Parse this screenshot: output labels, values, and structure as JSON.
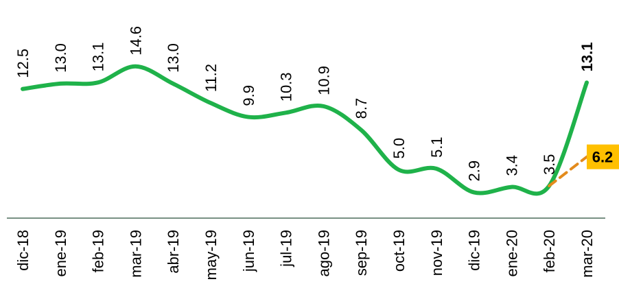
{
  "chart_data": {
    "type": "line",
    "categories": [
      "dic-18",
      "ene-19",
      "feb-19",
      "mar-19",
      "abr-19",
      "may-19",
      "jun-19",
      "jul-19",
      "ago-19",
      "sep-19",
      "oct-19",
      "nov-19",
      "dic-19",
      "ene-20",
      "feb-20",
      "mar-20"
    ],
    "series": [
      {
        "color": "#1fb24a",
        "values": [
          12.5,
          13.0,
          13.1,
          14.6,
          13.0,
          11.2,
          9.9,
          10.3,
          10.9,
          8.7,
          5.0,
          5.1,
          2.9,
          3.4,
          3.5,
          13.1
        ],
        "value_labels": [
          "12.5",
          "13.0",
          "13.1",
          "14.6",
          "13.0",
          "11.2",
          "9.9",
          "10.3",
          "10.9",
          "8.7",
          "5.0",
          "5.1",
          "2.9",
          "3.4",
          "3.5",
          "13.1"
        ]
      },
      {
        "color": "#e38b1d",
        "dashed": true,
        "values": [
          null,
          null,
          null,
          null,
          null,
          null,
          null,
          null,
          null,
          null,
          null,
          null,
          null,
          null,
          3.5,
          6.2
        ],
        "value_labels": [
          null,
          null,
          null,
          null,
          null,
          null,
          null,
          null,
          null,
          null,
          null,
          null,
          null,
          null,
          null,
          "6.2"
        ]
      }
    ]
  }
}
